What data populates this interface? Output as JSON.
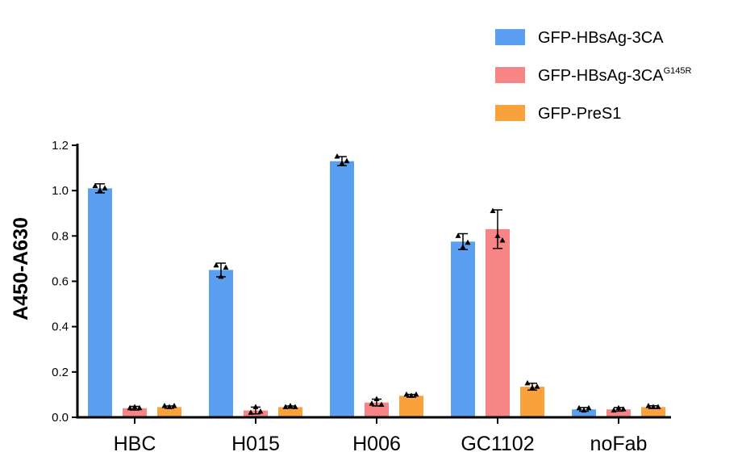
{
  "chart_data": {
    "type": "bar",
    "ylabel": "A450-A630",
    "ylim": [
      0,
      1.2
    ],
    "yticks": [
      "0.0",
      "0.2",
      "0.4",
      "0.6",
      "0.8",
      "1.0",
      "1.2"
    ],
    "categories": [
      "HBC",
      "H015",
      "H006",
      "GC1102",
      "noFab"
    ],
    "series": [
      {
        "name": "GFP-HBsAg-3CA",
        "name_superscript": "",
        "color": "#5b9ff0",
        "values": [
          1.01,
          0.65,
          1.13,
          0.775,
          0.035
        ],
        "error": [
          0.02,
          0.03,
          0.02,
          0.035,
          0.008
        ],
        "points": [
          [
            1.02,
            1.0,
            1.01
          ],
          [
            0.67,
            0.62,
            0.66
          ],
          [
            1.15,
            1.12,
            1.13
          ],
          [
            0.8,
            0.75,
            0.77
          ],
          [
            0.04,
            0.03,
            0.04
          ]
        ]
      },
      {
        "name": "GFP-HBsAg-3CA",
        "name_superscript": "G145R",
        "color": "#f78585",
        "values": [
          0.04,
          0.03,
          0.065,
          0.83,
          0.035
        ],
        "error": [
          0.008,
          0.015,
          0.015,
          0.085,
          0.008
        ],
        "points": [
          [
            0.04,
            0.045,
            0.04
          ],
          [
            0.02,
            0.045,
            0.025
          ],
          [
            0.06,
            0.08,
            0.055
          ],
          [
            0.91,
            0.8,
            0.78
          ],
          [
            0.03,
            0.04,
            0.035
          ]
        ]
      },
      {
        "name": "GFP-PreS1",
        "name_superscript": "",
        "color": "#f9a23c",
        "values": [
          0.045,
          0.045,
          0.095,
          0.135,
          0.045
        ],
        "error": [
          0.005,
          0.005,
          0.006,
          0.015,
          0.006
        ],
        "points": [
          [
            0.05,
            0.045,
            0.05
          ],
          [
            0.045,
            0.05,
            0.045
          ],
          [
            0.1,
            0.095,
            0.1
          ],
          [
            0.15,
            0.13,
            0.135
          ],
          [
            0.05,
            0.045,
            0.045
          ]
        ]
      }
    ],
    "legend_position": "top-right",
    "grid": false
  }
}
